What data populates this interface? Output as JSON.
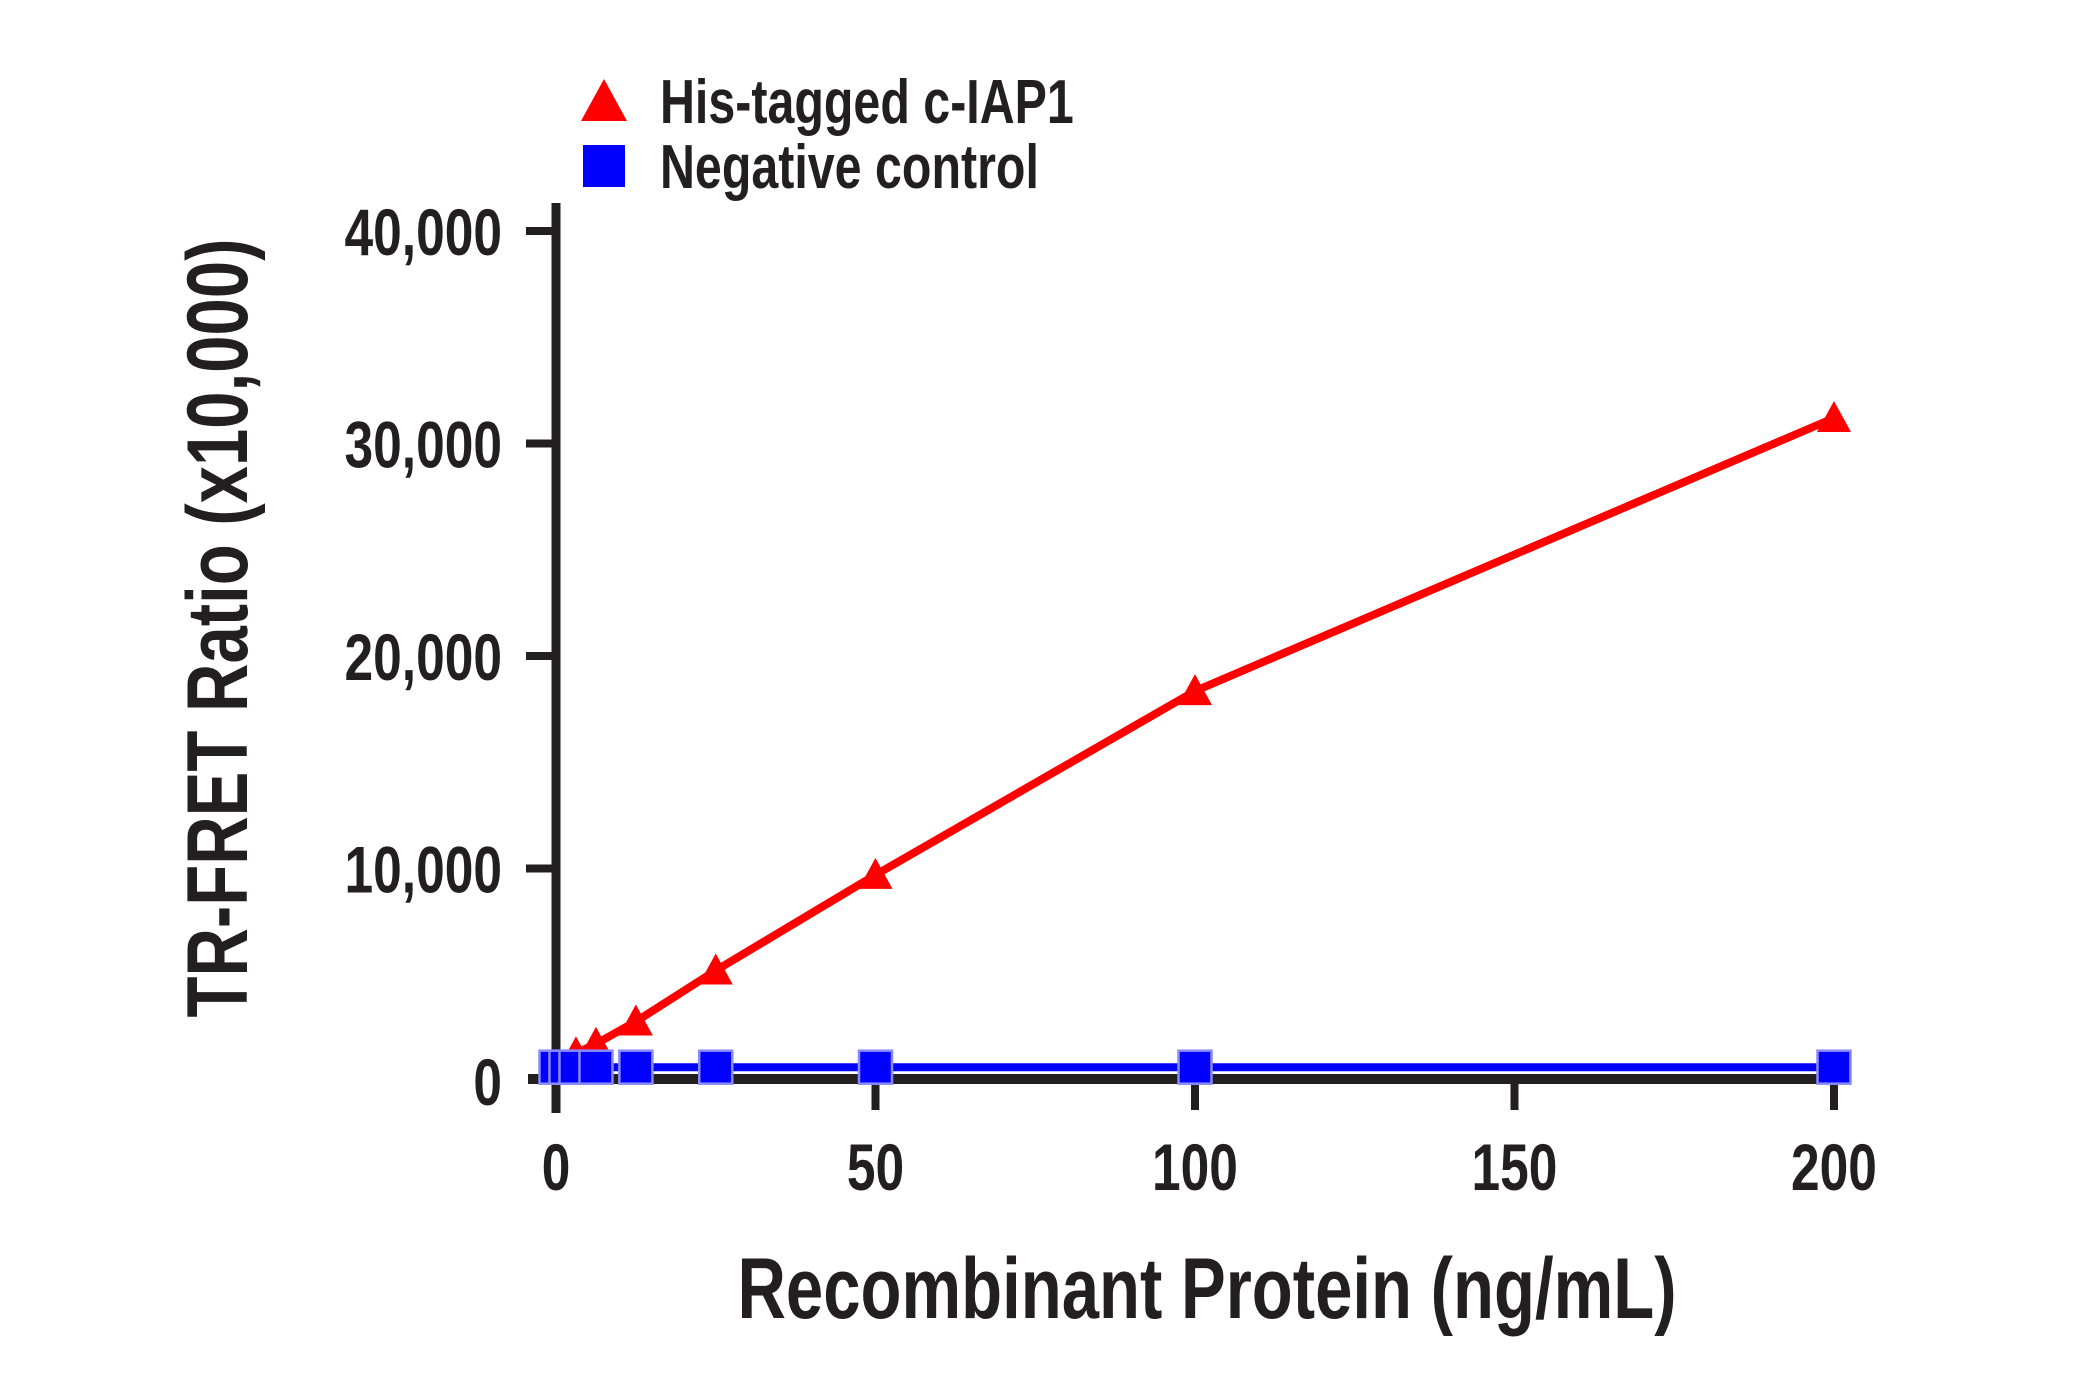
{
  "figure": {
    "background": "#FFFFFF",
    "text_color": "#231F20",
    "axis_color": "#231F20"
  },
  "legend": {
    "position": "top-left-above-plot",
    "items": [
      {
        "label": "His-tagged c-IAP1",
        "marker": "triangle",
        "color": "#FF0000"
      },
      {
        "label": "Negative control",
        "marker": "square",
        "color": "#0000FF"
      }
    ]
  },
  "chart_data": {
    "type": "line",
    "title": "",
    "xlabel": "Recombinant Protein (ng/mL)",
    "ylabel": "TR-FRET Ratio (x10,000)",
    "xlim": [
      0,
      200
    ],
    "ylim": [
      0,
      40000
    ],
    "grid": false,
    "legend_position": "top-left-above-plot",
    "x_ticks": [
      0,
      50,
      100,
      150,
      200
    ],
    "x_tick_labels": [
      "0",
      "50",
      "100",
      "150",
      "200"
    ],
    "y_ticks": [
      0,
      10000,
      20000,
      30000,
      40000
    ],
    "y_tick_labels": [
      "0",
      "10,000",
      "20,000",
      "30,000",
      "40,000"
    ],
    "series": [
      {
        "name": "His-tagged c-IAP1",
        "color": "#FF0000",
        "marker": "triangle",
        "x": [
          1.5625,
          3.125,
          6.25,
          12.5,
          25,
          50,
          100,
          200
        ],
        "y": [
          700,
          1300,
          1750,
          2800,
          5200,
          9700,
          18350,
          31200
        ]
      },
      {
        "name": "Negative control",
        "color": "#0000FF",
        "marker": "square",
        "marker_edge": "#8A8AFF",
        "x": [
          0,
          1.5625,
          3.125,
          6.25,
          12.5,
          25,
          50,
          100,
          200
        ],
        "y": [
          650,
          650,
          650,
          650,
          650,
          650,
          650,
          650,
          650
        ]
      }
    ]
  }
}
